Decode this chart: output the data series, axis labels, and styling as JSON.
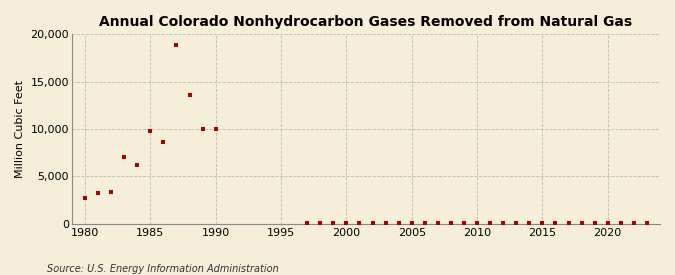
{
  "title": "Annual Colorado Nonhydrocarbon Gases Removed from Natural Gas",
  "ylabel": "Million Cubic Feet",
  "source": "Source: U.S. Energy Information Administration",
  "background_color": "#f5eed8",
  "marker_color": "#aa0000",
  "xlim": [
    1979,
    2024
  ],
  "ylim": [
    0,
    20000
  ],
  "yticks": [
    0,
    5000,
    10000,
    15000,
    20000
  ],
  "xticks": [
    1980,
    1985,
    1990,
    1995,
    2000,
    2005,
    2010,
    2015,
    2020
  ],
  "data": {
    "1980": 2700,
    "1981": 3300,
    "1982": 3400,
    "1983": 7100,
    "1984": 6200,
    "1985": 9800,
    "1986": 8600,
    "1987": 18900,
    "1988": 13600,
    "1989": 10000,
    "1990": 10000,
    "1997": 50,
    "1998": 50,
    "1999": 50,
    "2000": 50,
    "2001": 50,
    "2002": 50,
    "2003": 50,
    "2004": 50,
    "2005": 50,
    "2006": 50,
    "2007": 50,
    "2008": 50,
    "2009": 50,
    "2010": 50,
    "2011": 50,
    "2012": 50,
    "2013": 50,
    "2014": 50,
    "2015": 50,
    "2016": 50,
    "2017": 50,
    "2018": 50,
    "2019": 50,
    "2020": 50,
    "2021": 50,
    "2022": 50,
    "2023": 50
  }
}
